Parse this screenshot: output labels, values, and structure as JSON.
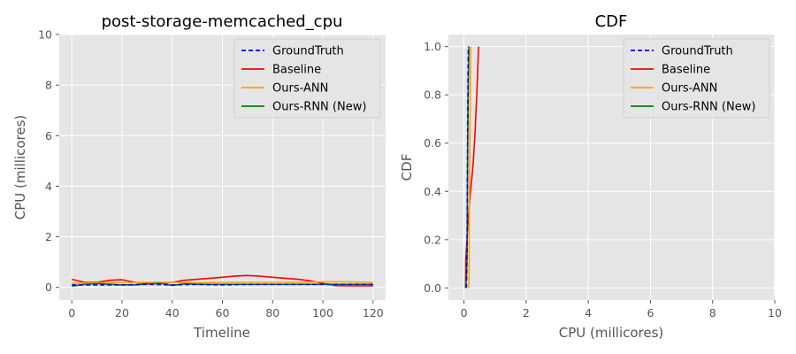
{
  "chart_data": [
    {
      "type": "line",
      "title": "post-storage-memcached_cpu",
      "xlabel": "Timeline",
      "ylabel": "CPU (millicores)",
      "xlim": [
        -5,
        125
      ],
      "ylim": [
        -0.5,
        10
      ],
      "xticks": [
        "0",
        "20",
        "40",
        "60",
        "80",
        "100",
        "120"
      ],
      "yticks": [
        "0",
        "2",
        "4",
        "6",
        "8",
        "10"
      ],
      "grid": true,
      "legend": "top-right",
      "series": [
        {
          "name": "GroundTruth",
          "color": "#0000ff",
          "dash": true,
          "x": [
            0,
            10,
            20,
            30,
            40,
            50,
            60,
            70,
            80,
            90,
            100,
            110,
            120
          ],
          "y": [
            0.1,
            0.1,
            0.1,
            0.12,
            0.1,
            0.12,
            0.1,
            0.12,
            0.12,
            0.12,
            0.12,
            0.12,
            0.12
          ]
        },
        {
          "name": "Baseline",
          "color": "#ff0000",
          "dash": false,
          "x": [
            0,
            5,
            10,
            15,
            20,
            25,
            30,
            35,
            40,
            45,
            50,
            55,
            60,
            65,
            70,
            75,
            80,
            85,
            90,
            95,
            100,
            105,
            110,
            115,
            120
          ],
          "y": [
            0.32,
            0.2,
            0.2,
            0.28,
            0.3,
            0.2,
            0.15,
            0.15,
            0.2,
            0.28,
            0.32,
            0.36,
            0.4,
            0.45,
            0.47,
            0.44,
            0.4,
            0.36,
            0.32,
            0.26,
            0.16,
            0.07,
            0.06,
            0.06,
            0.06
          ]
        },
        {
          "name": "Ours-ANN",
          "color": "#ffa500",
          "dash": false,
          "x": [
            0,
            10,
            20,
            30,
            40,
            50,
            60,
            70,
            80,
            90,
            100,
            110,
            120
          ],
          "y": [
            0.16,
            0.18,
            0.18,
            0.2,
            0.2,
            0.18,
            0.2,
            0.2,
            0.2,
            0.2,
            0.22,
            0.22,
            0.2
          ]
        },
        {
          "name": "Ours-RNN (New)",
          "color": "#008000",
          "dash": false,
          "x": [
            0,
            5,
            10,
            15,
            20,
            25,
            30,
            35,
            40,
            45,
            50,
            55,
            60,
            70,
            80,
            90,
            100,
            110,
            120
          ],
          "y": [
            0.05,
            0.12,
            0.15,
            0.12,
            0.1,
            0.1,
            0.13,
            0.16,
            0.08,
            0.14,
            0.12,
            0.12,
            0.12,
            0.12,
            0.12,
            0.12,
            0.12,
            0.12,
            0.12
          ]
        }
      ]
    },
    {
      "type": "line",
      "title": "CDF",
      "xlabel": "CPU (millicores)",
      "ylabel": "CDF",
      "xlim": [
        -0.5,
        10
      ],
      "ylim": [
        -0.05,
        1.05
      ],
      "xticks": [
        "0",
        "2",
        "4",
        "6",
        "8",
        "10"
      ],
      "yticks": [
        "0.0",
        "0.2",
        "0.4",
        "0.6",
        "0.8",
        "1.0"
      ],
      "grid": true,
      "legend": "top-right",
      "series": [
        {
          "name": "GroundTruth",
          "color": "#0000ff",
          "dash": true,
          "x": [
            0.08,
            0.1,
            0.11,
            0.12,
            0.13,
            0.14
          ],
          "y": [
            0.0,
            0.15,
            0.4,
            0.65,
            0.85,
            1.0
          ]
        },
        {
          "name": "Baseline",
          "color": "#ff0000",
          "dash": false,
          "x": [
            0.05,
            0.06,
            0.12,
            0.2,
            0.3,
            0.36,
            0.42,
            0.47
          ],
          "y": [
            0.0,
            0.12,
            0.25,
            0.38,
            0.52,
            0.65,
            0.82,
            1.0
          ]
        },
        {
          "name": "Ours-ANN",
          "color": "#ffa500",
          "dash": false,
          "x": [
            0.16,
            0.17,
            0.18,
            0.2,
            0.22
          ],
          "y": [
            0.0,
            0.2,
            0.45,
            0.75,
            1.0
          ]
        },
        {
          "name": "Ours-RNN (New)",
          "color": "#008000",
          "dash": false,
          "x": [
            0.05,
            0.08,
            0.1,
            0.12,
            0.14,
            0.16
          ],
          "y": [
            0.0,
            0.05,
            0.15,
            0.6,
            0.85,
            1.0
          ]
        }
      ]
    }
  ]
}
